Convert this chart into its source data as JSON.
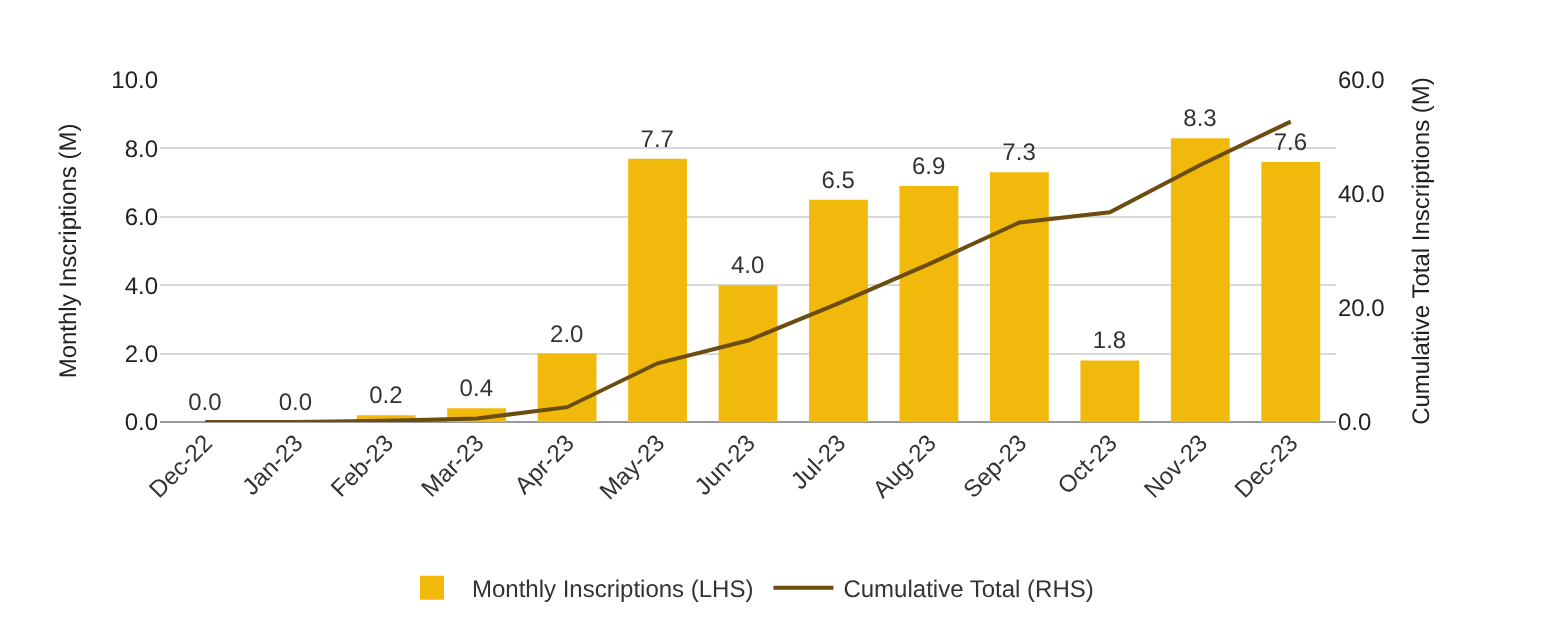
{
  "chart_data": {
    "type": "bar",
    "ylabel": "Monthly Inscriptions (M)",
    "y2label": "Cumulative Total Inscriptions (M)",
    "categories": [
      "Dec-22",
      "Jan-23",
      "Feb-23",
      "Mar-23",
      "Apr-23",
      "May-23",
      "Jun-23",
      "Jul-23",
      "Aug-23",
      "Sep-23",
      "Oct-23",
      "Nov-23",
      "Dec-23"
    ],
    "series": [
      {
        "name": "Monthly Inscriptions (LHS)",
        "color": "#f0b90b",
        "values": [
          0.0,
          0.0,
          0.2,
          0.4,
          2.0,
          7.7,
          4.0,
          6.5,
          6.9,
          7.3,
          1.8,
          8.3,
          7.6
        ],
        "value_labels": [
          "0.0",
          "0.0",
          "0.2",
          "0.4",
          "2.0",
          "7.7",
          "4.0",
          "6.5",
          "6.9",
          "7.3",
          "1.8",
          "8.3",
          "7.6"
        ]
      },
      {
        "name": "Cumulative Total (RHS)",
        "type": "line",
        "axis": "y2",
        "color": "#6b4c11",
        "values": [
          0,
          0,
          0.2,
          0.6,
          2.6,
          10.3,
          14.3,
          20.8,
          27.7,
          35.0,
          36.8,
          45.1,
          52.7
        ]
      }
    ],
    "ylim": [
      0,
      10
    ],
    "yticks": [
      {
        "value": 0,
        "label": "0.0"
      },
      {
        "value": 2,
        "label": "2.0"
      },
      {
        "value": 4,
        "label": "4.0"
      },
      {
        "value": 6,
        "label": "6.0"
      },
      {
        "value": 8,
        "label": "8.0"
      },
      {
        "value": 10,
        "label": "10.0"
      }
    ],
    "y2lim": [
      0,
      60
    ],
    "y2ticks": [
      {
        "value": 0,
        "label": "0.0"
      },
      {
        "value": 20,
        "label": "20.0"
      },
      {
        "value": 40,
        "label": "40.0"
      },
      {
        "value": 60,
        "label": "60.0"
      }
    ],
    "grid": "y",
    "legend": "bottom",
    "marker": "none",
    "line_style": "solid"
  }
}
